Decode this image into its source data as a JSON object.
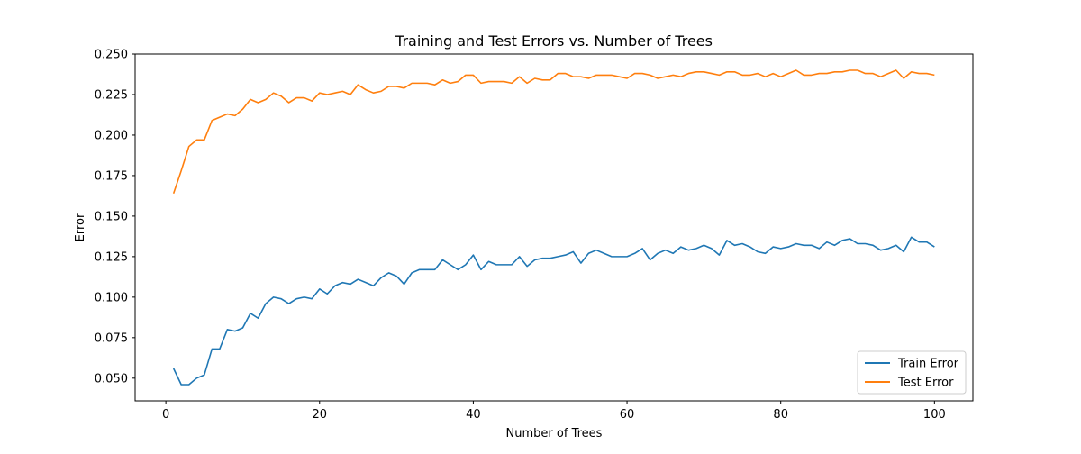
{
  "chart_data": {
    "type": "line",
    "title": "Training and Test Errors vs. Number of Trees",
    "xlabel": "Number of Trees",
    "ylabel": "Error",
    "xlim": [
      -4,
      105
    ],
    "ylim": [
      0.036,
      0.25
    ],
    "xticks": [
      0,
      20,
      40,
      60,
      80,
      100
    ],
    "yticks": [
      0.05,
      0.075,
      0.1,
      0.125,
      0.15,
      0.175,
      0.2,
      0.225,
      0.25
    ],
    "xtick_labels": [
      "0",
      "20",
      "40",
      "60",
      "80",
      "100"
    ],
    "ytick_labels": [
      "0.050",
      "0.075",
      "0.100",
      "0.125",
      "0.150",
      "0.175",
      "0.200",
      "0.225",
      "0.250"
    ],
    "grid": false,
    "legend_position": "lower-right",
    "x": [
      1,
      2,
      3,
      4,
      5,
      6,
      7,
      8,
      9,
      10,
      11,
      12,
      13,
      14,
      15,
      16,
      17,
      18,
      19,
      20,
      21,
      22,
      23,
      24,
      25,
      26,
      27,
      28,
      29,
      30,
      31,
      32,
      33,
      34,
      35,
      36,
      37,
      38,
      39,
      40,
      41,
      42,
      43,
      44,
      45,
      46,
      47,
      48,
      49,
      50,
      51,
      52,
      53,
      54,
      55,
      56,
      57,
      58,
      59,
      60,
      61,
      62,
      63,
      64,
      65,
      66,
      67,
      68,
      69,
      70,
      71,
      72,
      73,
      74,
      75,
      76,
      77,
      78,
      79,
      80,
      81,
      82,
      83,
      84,
      85,
      86,
      87,
      88,
      89,
      90,
      91,
      92,
      93,
      94,
      95,
      96,
      97,
      98,
      99,
      100
    ],
    "series": [
      {
        "name": "Train Error",
        "color": "#1f77b4",
        "values": [
          0.056,
          0.046,
          0.046,
          0.05,
          0.052,
          0.068,
          0.068,
          0.08,
          0.079,
          0.081,
          0.09,
          0.087,
          0.096,
          0.1,
          0.099,
          0.096,
          0.099,
          0.1,
          0.099,
          0.105,
          0.102,
          0.107,
          0.109,
          0.108,
          0.111,
          0.109,
          0.107,
          0.112,
          0.115,
          0.113,
          0.108,
          0.115,
          0.117,
          0.117,
          0.117,
          0.123,
          0.12,
          0.117,
          0.12,
          0.126,
          0.117,
          0.122,
          0.12,
          0.12,
          0.12,
          0.125,
          0.119,
          0.123,
          0.124,
          0.124,
          0.125,
          0.126,
          0.128,
          0.121,
          0.127,
          0.129,
          0.127,
          0.125,
          0.125,
          0.125,
          0.127,
          0.13,
          0.123,
          0.127,
          0.129,
          0.127,
          0.131,
          0.129,
          0.13,
          0.132,
          0.13,
          0.126,
          0.135,
          0.132,
          0.133,
          0.131,
          0.128,
          0.127,
          0.131,
          0.13,
          0.131,
          0.133,
          0.132,
          0.132,
          0.13,
          0.134,
          0.132,
          0.135,
          0.136,
          0.133,
          0.133,
          0.132,
          0.129,
          0.13,
          0.132,
          0.128,
          0.137,
          0.134,
          0.134,
          0.131
        ]
      },
      {
        "name": "Test Error",
        "color": "#ff7f0e",
        "values": [
          0.164,
          0.178,
          0.193,
          0.197,
          0.197,
          0.209,
          0.211,
          0.213,
          0.212,
          0.216,
          0.222,
          0.22,
          0.222,
          0.226,
          0.224,
          0.22,
          0.223,
          0.223,
          0.221,
          0.226,
          0.225,
          0.226,
          0.227,
          0.225,
          0.231,
          0.228,
          0.226,
          0.227,
          0.23,
          0.23,
          0.229,
          0.232,
          0.232,
          0.232,
          0.231,
          0.234,
          0.232,
          0.233,
          0.237,
          0.237,
          0.232,
          0.233,
          0.233,
          0.233,
          0.232,
          0.236,
          0.232,
          0.235,
          0.234,
          0.234,
          0.238,
          0.238,
          0.236,
          0.236,
          0.235,
          0.237,
          0.237,
          0.237,
          0.236,
          0.235,
          0.238,
          0.238,
          0.237,
          0.235,
          0.236,
          0.237,
          0.236,
          0.238,
          0.239,
          0.239,
          0.238,
          0.237,
          0.239,
          0.239,
          0.237,
          0.237,
          0.238,
          0.236,
          0.238,
          0.236,
          0.238,
          0.24,
          0.237,
          0.237,
          0.238,
          0.238,
          0.239,
          0.239,
          0.24,
          0.24,
          0.238,
          0.238,
          0.236,
          0.238,
          0.24,
          0.235,
          0.239,
          0.238,
          0.238,
          0.237
        ]
      }
    ]
  }
}
